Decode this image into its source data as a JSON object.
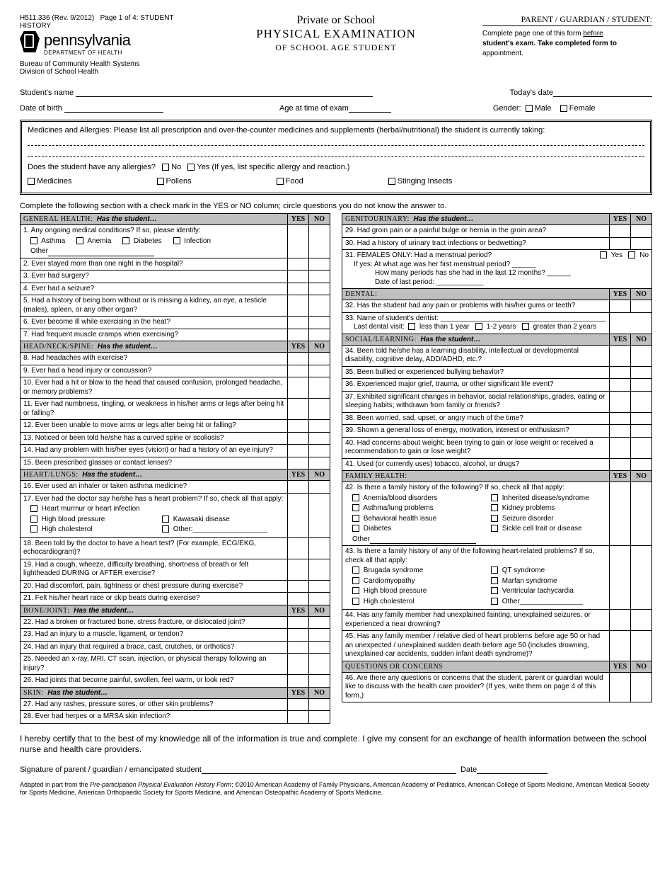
{
  "header": {
    "form_id": "H511.336 (Rev. 9/2012)",
    "page_label": "Page 1 of 4: STUDENT HISTORY",
    "state": "pennsylvania",
    "dept": "DEPARTMENT OF HEALTH",
    "bureau1": "Bureau of Community Health Systems",
    "bureau2": "Division of School Health",
    "title1": "Private or School",
    "title2": "PHYSICAL EXAMINATION",
    "title3": "OF SCHOOL AGE STUDENT",
    "pgs_title": "PARENT / GUARDIAN / STUDENT:",
    "pgs_body_1": "Complete page one of this form ",
    "pgs_body_underline": "before",
    "pgs_body_2": "student's exam.  Take completed form to",
    "pgs_body_3": "appointment."
  },
  "fields": {
    "student_name": "Student's name",
    "todays_date": "Today's date",
    "dob": "Date of birth",
    "age": "Age at time of exam",
    "gender": "Gender:",
    "male": "Male",
    "female": "Female"
  },
  "meds_box": {
    "title": "Medicines and Allergies: Please list all prescription and over-the-counter medicines and supplements (herbal/nutritional) the student is currently taking:",
    "allergy_q": "Does the student have any allergies?",
    "no": "No",
    "yes": "Yes (If yes, list specific allergy and reaction.)",
    "types": [
      "Medicines",
      "Pollens",
      "Food",
      "Stinging Insects"
    ]
  },
  "instruction": "Complete the following section with a check mark in the YES or NO column; circle questions you do not know the answer to.",
  "yn": {
    "yes": "YES",
    "no": "NO"
  },
  "prompt": "Has the student…",
  "sections_left": [
    {
      "label": "GENERAL HEALTH:",
      "questions": [
        {
          "n": "1.",
          "t": "Any ongoing medical conditions?  If so, please identify:",
          "opts": [
            "Asthma",
            "Anemia",
            "Diabetes",
            "Infection"
          ],
          "other": true
        },
        {
          "n": "2.",
          "t": "Ever stayed more than one night in the hospital?"
        },
        {
          "n": "3.",
          "t": "Ever had surgery?"
        },
        {
          "n": "4.",
          "t": "Ever had a seizure?"
        },
        {
          "n": "5.",
          "t": "Had a history of being born without or is missing a kidney, an eye, a testicle (males), spleen, or any other organ?"
        },
        {
          "n": "6.",
          "t": "Ever become ill while exercising in the heat?"
        },
        {
          "n": "7.",
          "t": "Had frequent muscle cramps when exercising?"
        }
      ]
    },
    {
      "label": "HEAD/NECK/SPINE:",
      "questions": [
        {
          "n": "8.",
          "t": "Had headaches with exercise?"
        },
        {
          "n": "9.",
          "t": "Ever had a head injury or concussion?"
        },
        {
          "n": "10.",
          "t": "Ever had a hit or blow to the head that caused confusion, prolonged headache, or memory problems?"
        },
        {
          "n": "11.",
          "t": "Ever had numbness, tingling, or weakness in his/her arms or legs after being hit or falling?"
        },
        {
          "n": "12.",
          "t": "Ever been unable to move arms or legs after being hit or falling?"
        },
        {
          "n": "13.",
          "t": "Noticed or been told he/she has a curved spine or scoliosis?"
        },
        {
          "n": "14.",
          "t": "Had any problem with his/her eyes (vision) or had a history of an eye injury?"
        },
        {
          "n": "15.",
          "t": "Been prescribed glasses or contact lenses?"
        }
      ]
    },
    {
      "label": "HEART/LUNGS:",
      "questions": [
        {
          "n": "16.",
          "t": "Ever used an inhaler or taken asthma medicine?"
        },
        {
          "n": "17.",
          "t": "Ever had the doctor say he/she has a heart problem?  If so, check all that apply:",
          "opts2": [
            [
              "Heart murmur or heart infection",
              ""
            ],
            [
              "High blood pressure",
              "Kawasaki disease"
            ],
            [
              "High cholesterol",
              "Other:___________________"
            ]
          ]
        },
        {
          "n": "18.",
          "t": "Been told by the doctor to have a heart test? (For example, ECG/EKG, echocardiogram)?"
        },
        {
          "n": "19.",
          "t": "Had a cough, wheeze, difficulty breathing, shortness of breath or felt lightheaded DURING or AFTER exercise?"
        },
        {
          "n": "20.",
          "t": "Had discomfort, pain, tightness or chest pressure during exercise?"
        },
        {
          "n": "21.",
          "t": "Felt his/her heart race or skip beats during exercise?"
        }
      ]
    },
    {
      "label": "BONE/JOINT:",
      "questions": [
        {
          "n": "22.",
          "t": "Had a broken or fractured bone, stress fracture, or dislocated joint?"
        },
        {
          "n": "23.",
          "t": "Had an injury to a muscle, ligament, or tendon?"
        },
        {
          "n": "24.",
          "t": "Had an injury that required a brace, cast, crutches, or orthotics?"
        },
        {
          "n": "25.",
          "t": "Needed an x-ray, MRI, CT scan, injection, or physical therapy following an injury?"
        },
        {
          "n": "26.",
          "t": "Had joints that become painful, swollen, feel warm, or look red?"
        }
      ]
    },
    {
      "label": "SKIN:",
      "questions": [
        {
          "n": "27.",
          "t": "Had any rashes, pressure sores, or other skin problems?"
        },
        {
          "n": "28.",
          "t": "Ever had herpes or a MRSA skin infection?"
        }
      ]
    }
  ],
  "sections_right": [
    {
      "label": "GENITOURINARY:",
      "questions": [
        {
          "n": "29.",
          "t": "Had groin pain or a painful bulge or hernia in the groin area?"
        },
        {
          "n": "30.",
          "t": "Had a history of urinary tract infections or bedwetting?"
        }
      ]
    },
    {
      "type": "females",
      "n": "31.",
      "title": "FEMALES ONLY: Had a menstrual period?",
      "yes": "Yes",
      "no": "No",
      "l1": "If yes: At what age was her first menstrual period?  ______",
      "l2": "How many periods has she had in the last 12 months? ______",
      "l3": "Date of last period: ____________"
    },
    {
      "label": "DENTAL:",
      "noprompt": true,
      "questions": [
        {
          "n": "32.",
          "t": "Has the student had any pain or problems with his/her gums or teeth?"
        },
        {
          "n": "33.",
          "t": "Name of student's dentist: __________________________________________",
          "sub": "Last dental visit:",
          "subopts": [
            "less than 1 year",
            "1-2 years",
            "greater than 2 years"
          ],
          "noyn": true
        }
      ]
    },
    {
      "label": "SOCIAL/LEARNING:",
      "questions": [
        {
          "n": "34.",
          "t": "Been told he/she has a learning disability, intellectual or developmental disability, cognitive delay, ADD/ADHD, etc.?"
        },
        {
          "n": "35.",
          "t": "Been bullied or experienced bullying behavior?"
        },
        {
          "n": "36.",
          "t": "Experienced major grief, trauma, or other significant life event?"
        },
        {
          "n": "37.",
          "t": "Exhibited significant changes in behavior, social relationships, grades, eating or sleeping habits; withdrawn from family or friends?"
        },
        {
          "n": "38.",
          "t": "Been worried, sad, upset, or angry much of the time?"
        },
        {
          "n": "39.",
          "t": "Shown a general loss of energy, motivation, interest or enthusiasm?"
        },
        {
          "n": "40.",
          "t": "Had concerns about weight;  been trying to gain or lose weight or received a recommendation to gain or lose weight?"
        },
        {
          "n": "41.",
          "t": "Used (or currently uses) tobacco, alcohol, or drugs?"
        }
      ]
    },
    {
      "label": "FAMILY HEALTH:",
      "noprompt": true,
      "questions": [
        {
          "n": "42.",
          "t": "Is there a family history of the following?  If so, check all that apply:",
          "pairs": [
            [
              "Anemia/blood disorders",
              "Inherited disease/syndrome"
            ],
            [
              "Asthma/lung problems",
              "Kidney problems"
            ],
            [
              "Behavioral health issue",
              "Seizure disorder"
            ],
            [
              "Diabetes",
              "Sickle cell trait or disease"
            ]
          ],
          "other": true
        },
        {
          "n": "43.",
          "t": "Is there a family history of any of the following heart-related problems? If so, check all that apply:",
          "pairs": [
            [
              "Brugada syndrome",
              "QT syndrome"
            ],
            [
              "Cardiomyopathy",
              "Marfan syndrome"
            ],
            [
              "High blood pressure",
              "Ventricular tachycardia"
            ],
            [
              "High cholesterol",
              "Other________________"
            ]
          ]
        },
        {
          "n": "44.",
          "t": "Has any family member had unexplained fainting, unexplained seizures, or experienced a near drowning?"
        },
        {
          "n": "45.",
          "t": "Has any family member / relative died of heart problems before age 50 or had an unexpected / unexplained sudden death before age 50 (includes drowning, unexplained car accidents, sudden infant death syndrome)?"
        }
      ]
    },
    {
      "label": "QUESTIONS OR CONCERNS",
      "noprompt": true,
      "questions": [
        {
          "n": "46.",
          "t": "Are there any questions or concerns that the student, parent or guardian would like to discuss with the health care provider?   (If yes, write them on page 4 of this form.)"
        }
      ]
    }
  ],
  "certify": "I hereby certify that to the best of my knowledge all of the information is true and complete. I give my consent for an exchange of health information between the school nurse and health care providers.",
  "sig": {
    "label": "Signature of parent / guardian / emancipated student",
    "date": "Date"
  },
  "footnote": "Adapted in part from the Pre-participation Physical Evaluation History Form; ©2010 American Academy of Family Physicians, American Academy of Pediatrics, American College of Sports Medicine, American Medical Society for Sports Medicine, American Orthopaedic Society for Sports Medicine, and American Osteopathic Academy of Sports Medicine."
}
